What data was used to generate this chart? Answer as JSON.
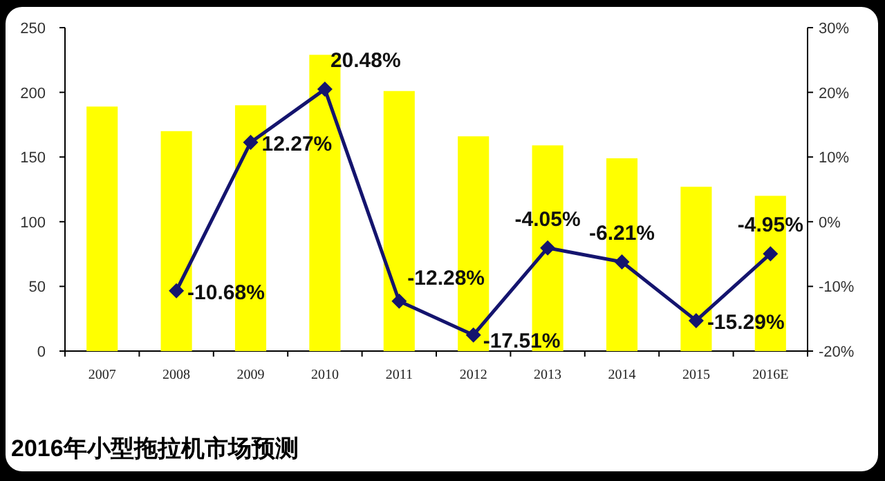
{
  "chart_data": {
    "type": "bar",
    "title": "2016年小型拖拉机市场预测",
    "categories": [
      "2007",
      "2008",
      "2009",
      "2010",
      "2011",
      "2012",
      "2013",
      "2014",
      "2015",
      "2016E"
    ],
    "ylim": [
      0,
      250
    ],
    "yticks": [
      0,
      50,
      100,
      150,
      200,
      250
    ],
    "y2lim": [
      -20,
      30
    ],
    "y2ticks": [
      {
        "value": -20,
        "label": "-20%"
      },
      {
        "value": -10,
        "label": "-10%"
      },
      {
        "value": 0,
        "label": "0%"
      },
      {
        "value": 10,
        "label": "10%"
      },
      {
        "value": 20,
        "label": "20%"
      },
      {
        "value": 30,
        "label": "30%"
      }
    ],
    "marker": "diamond",
    "series": [
      {
        "type": "bar",
        "color": "#ffff00",
        "values": [
          189,
          170,
          190,
          229,
          201,
          166,
          159,
          149,
          127,
          120
        ]
      },
      {
        "type": "line",
        "axis": "y2",
        "color": "#14146e",
        "values": [
          null,
          -10.68,
          12.27,
          20.48,
          -12.28,
          -17.51,
          -4.05,
          -6.21,
          -15.29,
          -4.95
        ],
        "value_labels": [
          null,
          "-10.68%",
          "12.27%",
          "20.48%",
          "-12.28%",
          "-17.51%",
          "-4.05%",
          "-6.21%",
          "-15.29%",
          "-4.95%"
        ]
      }
    ]
  }
}
